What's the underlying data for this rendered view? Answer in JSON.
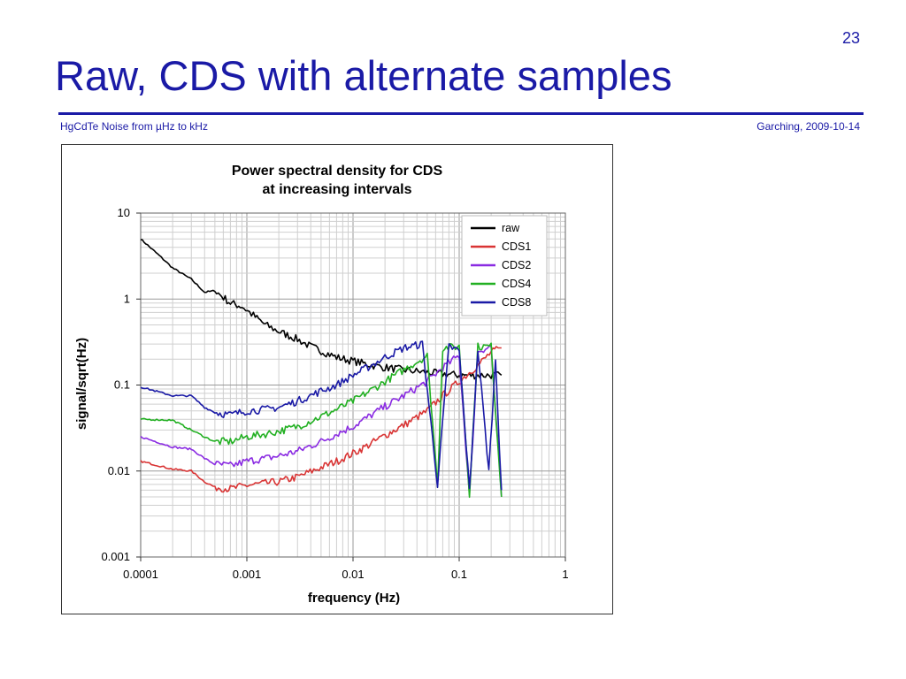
{
  "slide": {
    "number": "23",
    "title": "Raw,  CDS with alternate samples",
    "footer_left": "HgCdTe Noise from µHz to kHz",
    "footer_right": "Garching, 2009-10-14"
  },
  "colors": {
    "accent": "#1a1aa6"
  },
  "chart_data": {
    "type": "line",
    "title": "Power spectral density for CDS",
    "subtitle": "at increasing intervals",
    "xlabel": "frequency (Hz)",
    "ylabel": "signal/sqrt(Hz)",
    "x_scale": "log",
    "y_scale": "log",
    "xlim": [
      0.0001,
      1
    ],
    "ylim": [
      0.001,
      10
    ],
    "x_ticks": [
      "0.0001",
      "0.001",
      "0.01",
      "0.1",
      "1"
    ],
    "y_ticks": [
      "0.001",
      "0.01",
      "0.1",
      "1",
      "10"
    ],
    "grid": true,
    "legend_position": "top-right",
    "series": [
      {
        "name": "raw",
        "color": "#000000",
        "points": [
          [
            0.0001,
            5.0
          ],
          [
            0.00015,
            3.2
          ],
          [
            0.0002,
            2.3
          ],
          [
            0.0003,
            1.7
          ],
          [
            0.0004,
            1.2
          ],
          [
            0.0005,
            1.25
          ],
          [
            0.0007,
            0.9
          ],
          [
            0.0009,
            0.82
          ],
          [
            0.0012,
            0.62
          ],
          [
            0.0015,
            0.5
          ],
          [
            0.002,
            0.42
          ],
          [
            0.003,
            0.34
          ],
          [
            0.004,
            0.28
          ],
          [
            0.005,
            0.25
          ],
          [
            0.007,
            0.21
          ],
          [
            0.01,
            0.19
          ],
          [
            0.015,
            0.17
          ],
          [
            0.02,
            0.16
          ],
          [
            0.03,
            0.15
          ],
          [
            0.05,
            0.14
          ],
          [
            0.07,
            0.135
          ],
          [
            0.1,
            0.13
          ],
          [
            0.15,
            0.13
          ],
          [
            0.2,
            0.13
          ],
          [
            0.25,
            0.13
          ]
        ]
      },
      {
        "name": "CDS1",
        "color": "#d93434",
        "points": [
          [
            0.0001,
            0.013
          ],
          [
            0.0002,
            0.0105
          ],
          [
            0.0003,
            0.01
          ],
          [
            0.0004,
            0.0075
          ],
          [
            0.0005,
            0.0065
          ],
          [
            0.0007,
            0.0062
          ],
          [
            0.001,
            0.0068
          ],
          [
            0.0015,
            0.0072
          ],
          [
            0.002,
            0.0075
          ],
          [
            0.003,
            0.0085
          ],
          [
            0.005,
            0.011
          ],
          [
            0.007,
            0.013
          ],
          [
            0.01,
            0.016
          ],
          [
            0.015,
            0.021
          ],
          [
            0.02,
            0.026
          ],
          [
            0.03,
            0.034
          ],
          [
            0.05,
            0.05
          ],
          [
            0.07,
            0.075
          ],
          [
            0.1,
            0.11
          ],
          [
            0.15,
            0.17
          ],
          [
            0.2,
            0.24
          ],
          [
            0.25,
            0.27
          ]
        ]
      },
      {
        "name": "CDS2",
        "color": "#8a2be2",
        "points": [
          [
            0.0001,
            0.025
          ],
          [
            0.0002,
            0.019
          ],
          [
            0.0003,
            0.018
          ],
          [
            0.0004,
            0.014
          ],
          [
            0.0005,
            0.012
          ],
          [
            0.0007,
            0.0115
          ],
          [
            0.001,
            0.013
          ],
          [
            0.0015,
            0.014
          ],
          [
            0.002,
            0.015
          ],
          [
            0.003,
            0.017
          ],
          [
            0.005,
            0.022
          ],
          [
            0.007,
            0.027
          ],
          [
            0.01,
            0.033
          ],
          [
            0.015,
            0.045
          ],
          [
            0.02,
            0.056
          ],
          [
            0.03,
            0.075
          ],
          [
            0.05,
            0.11
          ],
          [
            0.07,
            0.16
          ],
          [
            0.1,
            0.22
          ],
          [
            0.125,
            0.005
          ],
          [
            0.15,
            0.25
          ],
          [
            0.2,
            0.28
          ],
          [
            0.25,
            0.005
          ]
        ]
      },
      {
        "name": "CDS4",
        "color": "#22b022",
        "points": [
          [
            0.0001,
            0.04
          ],
          [
            0.0002,
            0.039
          ],
          [
            0.0003,
            0.03
          ],
          [
            0.0004,
            0.025
          ],
          [
            0.0005,
            0.022
          ],
          [
            0.0007,
            0.022
          ],
          [
            0.001,
            0.025
          ],
          [
            0.0015,
            0.027
          ],
          [
            0.002,
            0.029
          ],
          [
            0.003,
            0.033
          ],
          [
            0.005,
            0.043
          ],
          [
            0.007,
            0.052
          ],
          [
            0.01,
            0.065
          ],
          [
            0.015,
            0.088
          ],
          [
            0.02,
            0.11
          ],
          [
            0.03,
            0.15
          ],
          [
            0.05,
            0.22
          ],
          [
            0.0625,
            0.007
          ],
          [
            0.07,
            0.27
          ],
          [
            0.1,
            0.28
          ],
          [
            0.125,
            0.0055
          ],
          [
            0.15,
            0.28
          ],
          [
            0.2,
            0.28
          ],
          [
            0.25,
            0.005
          ]
        ]
      },
      {
        "name": "CDS8",
        "color": "#1a1aa6",
        "points": [
          [
            0.0001,
            0.095
          ],
          [
            0.0002,
            0.075
          ],
          [
            0.0003,
            0.075
          ],
          [
            0.0004,
            0.055
          ],
          [
            0.0005,
            0.048
          ],
          [
            0.0007,
            0.045
          ],
          [
            0.001,
            0.05
          ],
          [
            0.0015,
            0.052
          ],
          [
            0.002,
            0.055
          ],
          [
            0.003,
            0.065
          ],
          [
            0.005,
            0.085
          ],
          [
            0.007,
            0.1
          ],
          [
            0.01,
            0.13
          ],
          [
            0.015,
            0.17
          ],
          [
            0.02,
            0.21
          ],
          [
            0.03,
            0.27
          ],
          [
            0.045,
            0.3
          ],
          [
            0.0625,
            0.007
          ],
          [
            0.08,
            0.28
          ],
          [
            0.1,
            0.25
          ],
          [
            0.125,
            0.006
          ],
          [
            0.15,
            0.26
          ],
          [
            0.19,
            0.01
          ],
          [
            0.22,
            0.2
          ],
          [
            0.25,
            0.006
          ]
        ]
      }
    ]
  }
}
